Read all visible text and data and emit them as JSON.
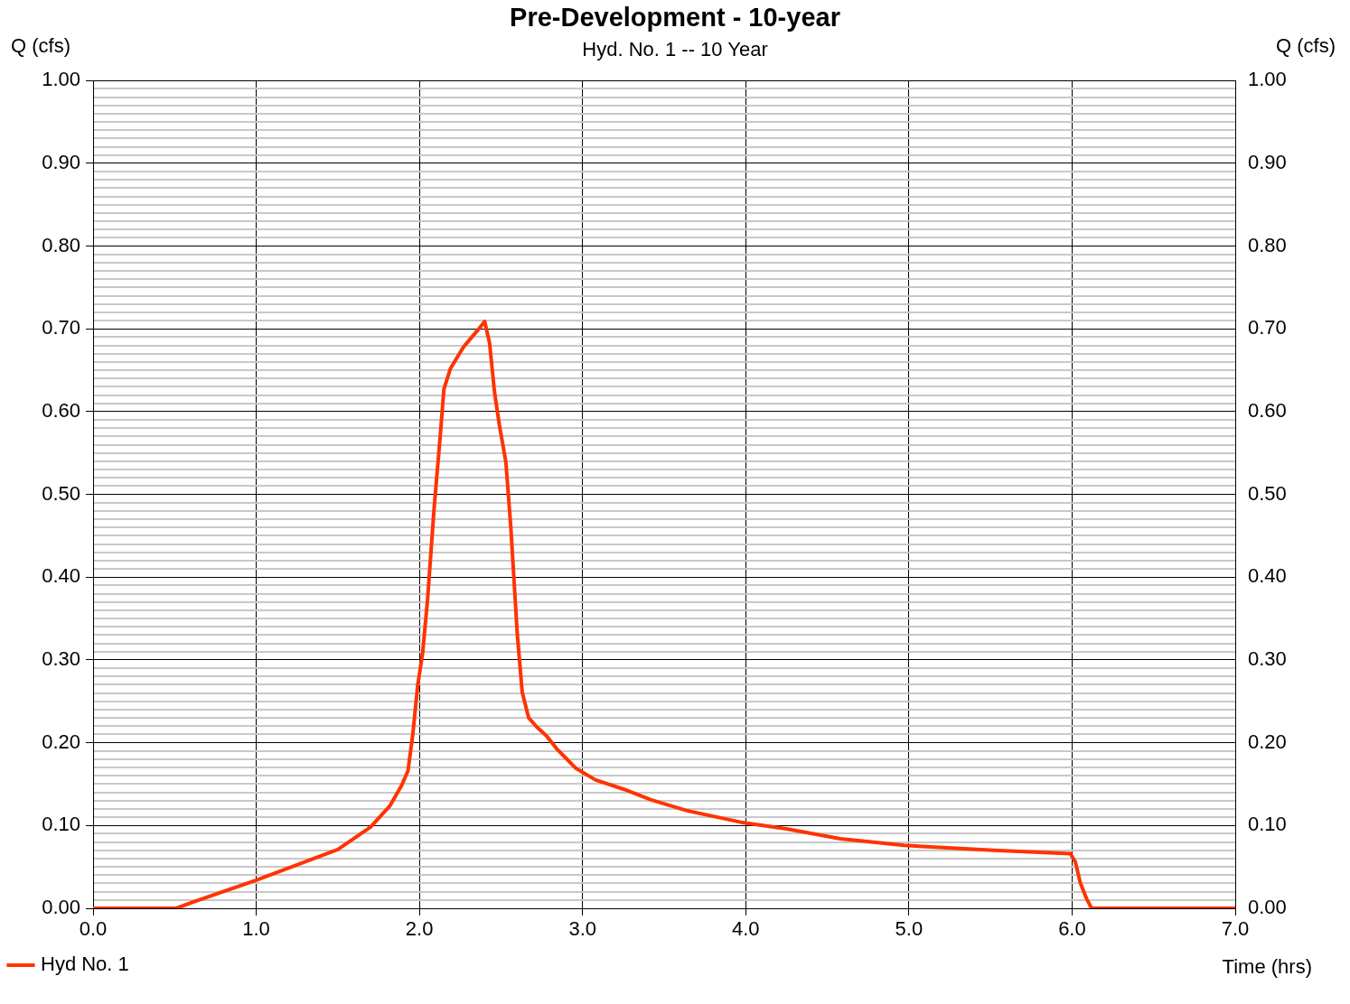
{
  "chart_data": {
    "type": "line",
    "title": "Pre-Development - 10-year",
    "subtitle": "Hyd. No. 1 -- 10 Year",
    "xlabel": "Time (hrs)",
    "ylabel": "Q (cfs)",
    "y2label": "Q (cfs)",
    "xlim": [
      0,
      7
    ],
    "xticks": [
      {
        "value": 0,
        "label": "0.0"
      },
      {
        "value": 1,
        "label": "1.0"
      },
      {
        "value": 2,
        "label": "2.0"
      },
      {
        "value": 3,
        "label": "3.0"
      },
      {
        "value": 4,
        "label": "4.0"
      },
      {
        "value": 5,
        "label": "5.0"
      },
      {
        "value": 6,
        "label": "6.0"
      },
      {
        "value": 7,
        "label": "7.0"
      }
    ],
    "ylim": [
      0,
      1
    ],
    "y2lim": [
      0,
      1
    ],
    "y2ticks": [
      {
        "value": 0,
        "label": "0.00"
      },
      {
        "value": 0.1,
        "label": "0.10"
      },
      {
        "value": 0.2,
        "label": "0.20"
      },
      {
        "value": 0.3,
        "label": "0.30"
      },
      {
        "value": 0.4,
        "label": "0.40"
      },
      {
        "value": 0.5,
        "label": "0.50"
      },
      {
        "value": 0.6,
        "label": "0.60"
      },
      {
        "value": 0.7,
        "label": "0.70"
      },
      {
        "value": 0.8,
        "label": "0.80"
      },
      {
        "value": 0.9,
        "label": "0.90"
      },
      {
        "value": 1,
        "label": "1.00"
      }
    ],
    "yticks": [
      {
        "value": 0,
        "label": "0.00"
      },
      {
        "value": 0.01,
        "label": null
      },
      {
        "value": 0.02,
        "label": null
      },
      {
        "value": 0.03,
        "label": null
      },
      {
        "value": 0.04,
        "label": null
      },
      {
        "value": 0.05,
        "label": null
      },
      {
        "value": 0.06,
        "label": null
      },
      {
        "value": 0.07,
        "label": null
      },
      {
        "value": 0.08,
        "label": null
      },
      {
        "value": 0.09,
        "label": null
      },
      {
        "value": 0.1,
        "label": "0.10"
      },
      {
        "value": 0.11,
        "label": null
      },
      {
        "value": 0.12,
        "label": null
      },
      {
        "value": 0.13,
        "label": null
      },
      {
        "value": 0.14,
        "label": null
      },
      {
        "value": 0.15,
        "label": null
      },
      {
        "value": 0.16,
        "label": null
      },
      {
        "value": 0.17,
        "label": null
      },
      {
        "value": 0.18,
        "label": null
      },
      {
        "value": 0.19,
        "label": null
      },
      {
        "value": 0.2,
        "label": "0.20"
      },
      {
        "value": 0.21,
        "label": null
      },
      {
        "value": 0.22,
        "label": null
      },
      {
        "value": 0.23,
        "label": null
      },
      {
        "value": 0.24,
        "label": null
      },
      {
        "value": 0.25,
        "label": null
      },
      {
        "value": 0.26,
        "label": null
      },
      {
        "value": 0.27,
        "label": null
      },
      {
        "value": 0.28,
        "label": null
      },
      {
        "value": 0.29,
        "label": null
      },
      {
        "value": 0.3,
        "label": "0.30"
      },
      {
        "value": 0.31,
        "label": null
      },
      {
        "value": 0.32,
        "label": null
      },
      {
        "value": 0.33,
        "label": null
      },
      {
        "value": 0.34,
        "label": null
      },
      {
        "value": 0.35,
        "label": null
      },
      {
        "value": 0.36,
        "label": null
      },
      {
        "value": 0.37,
        "label": null
      },
      {
        "value": 0.38,
        "label": null
      },
      {
        "value": 0.39,
        "label": null
      },
      {
        "value": 0.4,
        "label": "0.40"
      },
      {
        "value": 0.41,
        "label": null
      },
      {
        "value": 0.42,
        "label": null
      },
      {
        "value": 0.43,
        "label": null
      },
      {
        "value": 0.44,
        "label": null
      },
      {
        "value": 0.45,
        "label": null
      },
      {
        "value": 0.46,
        "label": null
      },
      {
        "value": 0.47,
        "label": null
      },
      {
        "value": 0.48,
        "label": null
      },
      {
        "value": 0.49,
        "label": null
      },
      {
        "value": 0.5,
        "label": "0.50"
      },
      {
        "value": 0.51,
        "label": null
      },
      {
        "value": 0.52,
        "label": null
      },
      {
        "value": 0.53,
        "label": null
      },
      {
        "value": 0.54,
        "label": null
      },
      {
        "value": 0.55,
        "label": null
      },
      {
        "value": 0.56,
        "label": null
      },
      {
        "value": 0.57,
        "label": null
      },
      {
        "value": 0.58,
        "label": null
      },
      {
        "value": 0.59,
        "label": null
      },
      {
        "value": 0.6,
        "label": "0.60"
      },
      {
        "value": 0.61,
        "label": null
      },
      {
        "value": 0.62,
        "label": null
      },
      {
        "value": 0.63,
        "label": null
      },
      {
        "value": 0.64,
        "label": null
      },
      {
        "value": 0.65,
        "label": null
      },
      {
        "value": 0.66,
        "label": null
      },
      {
        "value": 0.67,
        "label": null
      },
      {
        "value": 0.68,
        "label": null
      },
      {
        "value": 0.69,
        "label": null
      },
      {
        "value": 0.7,
        "label": "0.70"
      },
      {
        "value": 0.71,
        "label": null
      },
      {
        "value": 0.72,
        "label": null
      },
      {
        "value": 0.73,
        "label": null
      },
      {
        "value": 0.74,
        "label": null
      },
      {
        "value": 0.75,
        "label": null
      },
      {
        "value": 0.76,
        "label": null
      },
      {
        "value": 0.77,
        "label": null
      },
      {
        "value": 0.78,
        "label": null
      },
      {
        "value": 0.79,
        "label": null
      },
      {
        "value": 0.8,
        "label": "0.80"
      },
      {
        "value": 0.81,
        "label": null
      },
      {
        "value": 0.82,
        "label": null
      },
      {
        "value": 0.83,
        "label": null
      },
      {
        "value": 0.84,
        "label": null
      },
      {
        "value": 0.85,
        "label": null
      },
      {
        "value": 0.86,
        "label": null
      },
      {
        "value": 0.87,
        "label": null
      },
      {
        "value": 0.88,
        "label": null
      },
      {
        "value": 0.89,
        "label": null
      },
      {
        "value": 0.9,
        "label": "0.90"
      },
      {
        "value": 0.91,
        "label": null
      },
      {
        "value": 0.92,
        "label": null
      },
      {
        "value": 0.93,
        "label": null
      },
      {
        "value": 0.94,
        "label": null
      },
      {
        "value": 0.95,
        "label": null
      },
      {
        "value": 0.96,
        "label": null
      },
      {
        "value": 0.97,
        "label": null
      },
      {
        "value": 0.98,
        "label": null
      },
      {
        "value": 0.99,
        "label": null
      },
      {
        "value": 1,
        "label": "1.00"
      }
    ],
    "grid": true,
    "legend": "bottom left",
    "marker": "none",
    "line_style": "solid",
    "series": [
      {
        "name": "Hyd No. 1",
        "color": "#ff3300",
        "x": [
          0,
          0.51,
          0.62,
          1.0,
          1.5,
          1.7,
          1.82,
          1.89,
          1.93,
          1.96,
          1.99,
          2.02,
          2.05,
          2.09,
          2.13,
          2.15,
          2.19,
          2.27,
          2.36,
          2.4,
          2.43,
          2.46,
          2.49,
          2.53,
          2.56,
          2.6,
          2.63,
          2.67,
          2.72,
          2.78,
          2.84,
          2.89,
          2.96,
          3.08,
          3.25,
          3.42,
          3.64,
          3.97,
          4.25,
          4.58,
          4.97,
          5.52,
          5.99,
          6.02,
          6.05,
          6.09,
          6.12,
          7.0
        ],
        "values": [
          0,
          0,
          0.008,
          0.034,
          0.071,
          0.098,
          0.124,
          0.148,
          0.166,
          0.211,
          0.27,
          0.309,
          0.373,
          0.483,
          0.576,
          0.627,
          0.652,
          0.678,
          0.699,
          0.709,
          0.683,
          0.624,
          0.584,
          0.539,
          0.461,
          0.331,
          0.261,
          0.23,
          0.219,
          0.208,
          0.193,
          0.183,
          0.169,
          0.155,
          0.144,
          0.131,
          0.118,
          0.104,
          0.096,
          0.084,
          0.076,
          0.07,
          0.066,
          0.056,
          0.031,
          0.011,
          0,
          0
        ]
      }
    ]
  }
}
